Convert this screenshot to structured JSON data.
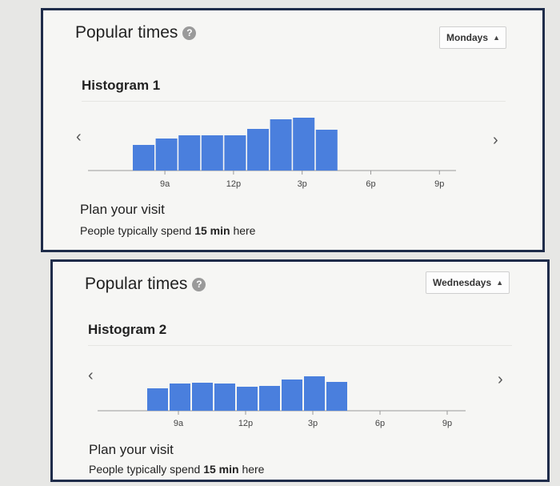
{
  "panels": [
    {
      "popular_title": "Popular times",
      "help_icon": "question-icon",
      "day_label": "Mondays",
      "histogram_title": "Histogram 1",
      "plan_title": "Plan your visit",
      "plan_sub_prefix": "People typically spend ",
      "plan_sub_bold": "15 min",
      "plan_sub_suffix": " here",
      "prev_icon": "chevron-left-icon",
      "next_icon": "chevron-right-icon"
    },
    {
      "popular_title": "Popular times",
      "help_icon": "question-icon",
      "day_label": "Wednesdays",
      "histogram_title": "Histogram 2",
      "plan_title": "Plan your visit",
      "plan_sub_prefix": "People typically spend ",
      "plan_sub_bold": "15 min",
      "plan_sub_suffix": " here",
      "prev_icon": "chevron-left-icon",
      "next_icon": "chevron-right-icon"
    }
  ],
  "colors": {
    "bar": "#4a7fdd",
    "axis": "#9a9a9a",
    "frame": "#1f2c4a"
  },
  "chart_data": [
    {
      "type": "bar",
      "title": "Histogram 1",
      "categories": [
        "8a",
        "9a",
        "10a",
        "11a",
        "12p",
        "1p",
        "2p",
        "3p",
        "4p"
      ],
      "values": [
        32,
        40,
        44,
        44,
        44,
        52,
        64,
        66,
        51
      ],
      "tick_labels": [
        "9a",
        "12p",
        "3p",
        "6p",
        "9p"
      ],
      "ylim": [
        0,
        100
      ]
    },
    {
      "type": "bar",
      "title": "Histogram 2",
      "categories": [
        "8a",
        "9a",
        "10a",
        "11a",
        "12p",
        "1p",
        "2p",
        "3p",
        "4p"
      ],
      "values": [
        28,
        34,
        35,
        34,
        30,
        31,
        39,
        43,
        36
      ],
      "tick_labels": [
        "9a",
        "12p",
        "3p",
        "6p",
        "9p"
      ],
      "ylim": [
        0,
        100
      ]
    }
  ]
}
